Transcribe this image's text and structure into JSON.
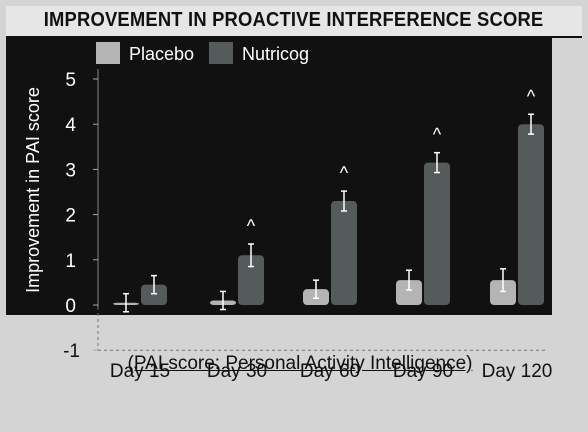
{
  "chart_data": {
    "type": "bar",
    "title": "IMPROVEMENT IN PROACTIVE INTERFERENCE SCORE",
    "ylabel": "Improvement in PAI score",
    "xlabel": "(PAI score: Personal Activity Intelligence)",
    "ylim": [
      -1,
      5
    ],
    "yticks": [
      "-1",
      "0",
      "1",
      "2",
      "3",
      "4",
      "5"
    ],
    "categories": [
      "Day 15",
      "Day 30",
      "Day 60",
      "Day 90",
      "Day 120"
    ],
    "legend_position": "top-left",
    "significance_marker": "^",
    "series": [
      {
        "name": "Placebo",
        "color": "#b4b4b4",
        "values": [
          0.05,
          0.1,
          0.35,
          0.55,
          0.55
        ],
        "errors": [
          0.2,
          0.2,
          0.2,
          0.22,
          0.25
        ],
        "significant": [
          false,
          false,
          false,
          false,
          false
        ]
      },
      {
        "name": "Nutricog",
        "color": "#555a5a",
        "values": [
          0.45,
          1.1,
          2.3,
          3.15,
          4.0
        ],
        "errors": [
          0.2,
          0.25,
          0.22,
          0.22,
          0.22
        ],
        "significant": [
          false,
          true,
          true,
          true,
          true
        ]
      }
    ]
  }
}
